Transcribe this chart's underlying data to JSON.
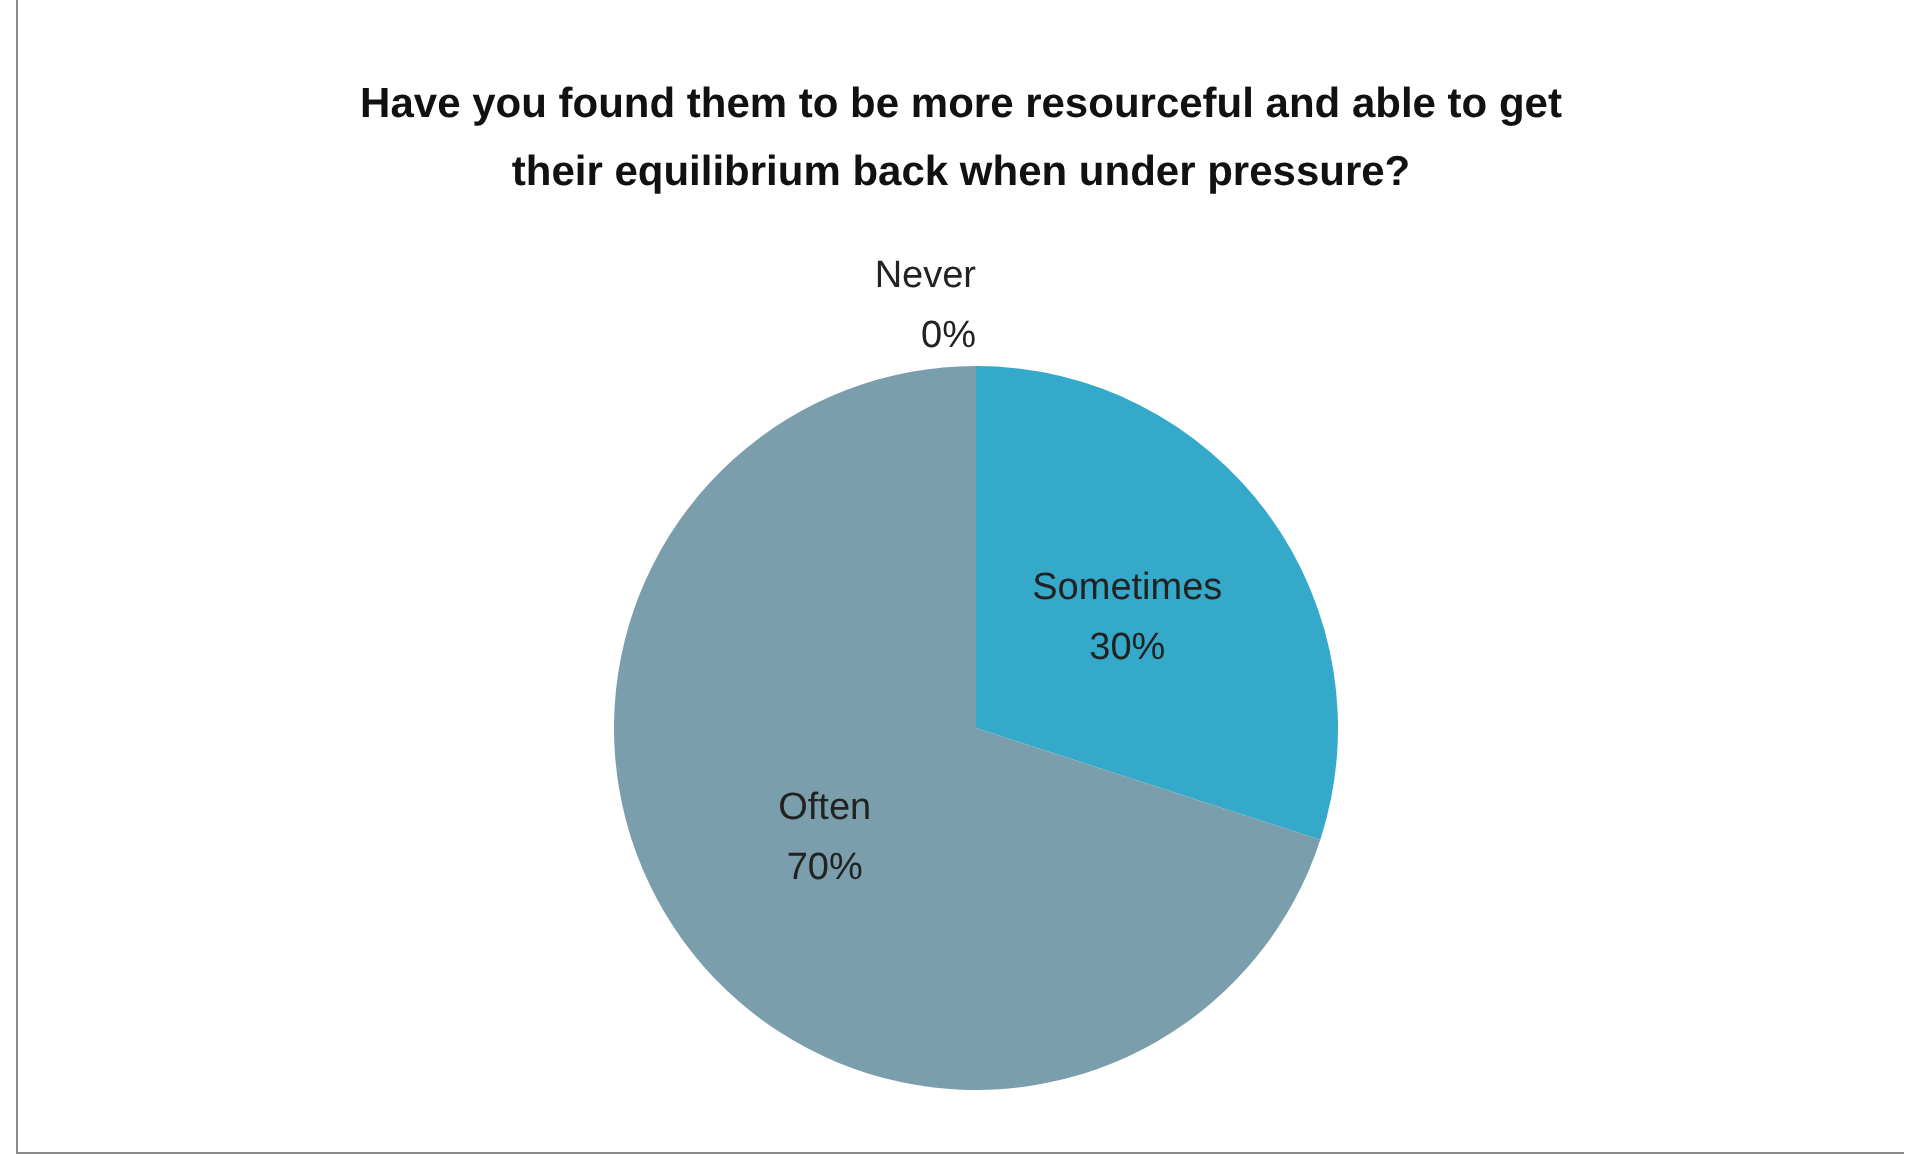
{
  "chart_data": {
    "type": "pie",
    "title": "Have you found them to be more resourceful and able to get\ntheir equilibrium back when under pressure?",
    "categories": [
      "Never",
      "Sometimes",
      "Often"
    ],
    "values": [
      0,
      30,
      70
    ],
    "value_labels": [
      "0%",
      "30%",
      "70%"
    ],
    "colors": [
      "#1f5f8b",
      "#35a9c9",
      "#7a9eab"
    ],
    "legend": false
  }
}
